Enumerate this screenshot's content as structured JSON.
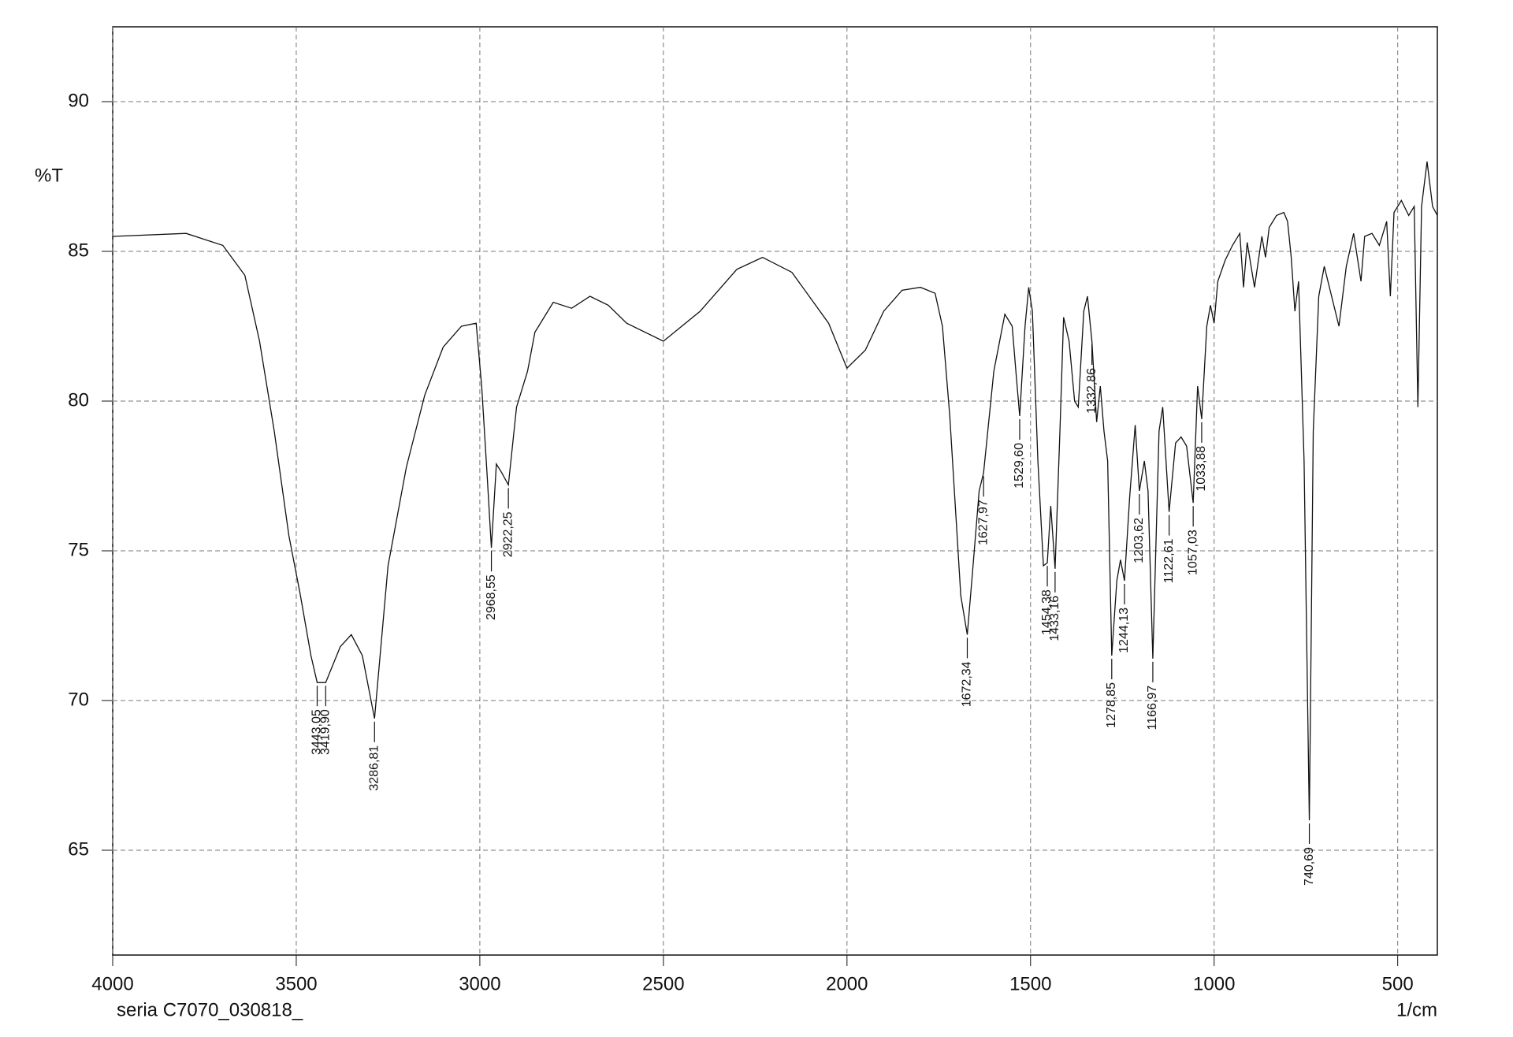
{
  "chart_data": {
    "type": "line",
    "y_label": "%T",
    "x_label": "1/cm",
    "footer": "seria C7070_030818_",
    "color": "#111111",
    "grid": true,
    "xlim": [
      4000,
      392
    ],
    "ylim": [
      61.5,
      92.5
    ],
    "xticks": [
      4000,
      3500,
      3000,
      2500,
      2000,
      1500,
      1000,
      500
    ],
    "yticks": [
      65,
      70,
      75,
      80,
      85,
      90
    ],
    "x": [
      4000,
      3800,
      3700,
      3640,
      3600,
      3560,
      3520,
      3490,
      3460,
      3443.05,
      3419.9,
      3380,
      3350,
      3320,
      3286.81,
      3250,
      3200,
      3150,
      3100,
      3050,
      3010,
      2995,
      2980,
      2968.55,
      2955,
      2940,
      2922.25,
      2900,
      2870,
      2850,
      2800,
      2750,
      2700,
      2650,
      2600,
      2500,
      2400,
      2300,
      2230,
      2150,
      2050,
      2000,
      1950,
      1900,
      1850,
      1800,
      1760,
      1740,
      1720,
      1700,
      1690,
      1672.34,
      1660,
      1640,
      1627.97,
      1600,
      1570,
      1550,
      1540,
      1529.6,
      1515,
      1505,
      1495,
      1480,
      1465,
      1454.38,
      1445,
      1433.16,
      1420,
      1410,
      1395,
      1380,
      1370,
      1355,
      1345,
      1332.86,
      1320,
      1310,
      1300,
      1290,
      1278.85,
      1265,
      1255,
      1244.13,
      1230,
      1215,
      1203.62,
      1190,
      1180,
      1166.97,
      1150,
      1140,
      1122.61,
      1105,
      1090,
      1075,
      1057.03,
      1045,
      1033.88,
      1020,
      1010,
      1000,
      990,
      970,
      950,
      930,
      920,
      910,
      890,
      870,
      860,
      850,
      830,
      810,
      800,
      790,
      780,
      770,
      755,
      740.69,
      730,
      715,
      700,
      680,
      660,
      640,
      620,
      600,
      590,
      570,
      550,
      530,
      520,
      510,
      490,
      470,
      455,
      445,
      435,
      420,
      405,
      392
    ],
    "y": [
      85.5,
      85.6,
      85.2,
      84.2,
      82.0,
      79.0,
      75.5,
      73.6,
      71.5,
      70.6,
      70.6,
      71.8,
      72.2,
      71.5,
      69.4,
      74.5,
      77.8,
      80.2,
      81.8,
      82.5,
      82.6,
      80.5,
      77.5,
      75.1,
      77.9,
      77.6,
      77.2,
      79.8,
      81.0,
      82.3,
      83.3,
      83.1,
      83.5,
      83.2,
      82.6,
      82.0,
      83.0,
      84.4,
      84.8,
      84.3,
      82.6,
      81.1,
      81.7,
      83.0,
      83.7,
      83.8,
      83.6,
      82.5,
      79.5,
      75.5,
      73.5,
      72.2,
      74.0,
      77.0,
      77.6,
      81.0,
      82.9,
      82.5,
      81.0,
      79.5,
      82.5,
      83.8,
      83.0,
      78.0,
      74.5,
      74.6,
      76.5,
      74.4,
      79.0,
      82.8,
      82.0,
      80.0,
      79.8,
      83.0,
      83.5,
      82.0,
      79.3,
      80.5,
      79.0,
      78.0,
      71.5,
      74.0,
      74.7,
      74.0,
      76.8,
      79.2,
      77.0,
      78.0,
      77.0,
      71.4,
      79.0,
      79.8,
      76.3,
      78.6,
      78.8,
      78.5,
      76.6,
      80.5,
      79.4,
      82.5,
      83.2,
      82.6,
      84.0,
      84.7,
      85.2,
      85.6,
      83.8,
      85.3,
      83.8,
      85.5,
      84.8,
      85.8,
      86.2,
      86.3,
      86.0,
      84.8,
      83.0,
      84.0,
      78.0,
      66.0,
      79.0,
      83.5,
      84.5,
      83.5,
      82.5,
      84.5,
      85.6,
      84.0,
      85.5,
      85.6,
      85.2,
      86.0,
      83.5,
      86.3,
      86.7,
      86.2,
      86.5,
      79.8,
      86.5,
      88.0,
      86.5,
      86.2
    ],
    "annotations": [
      {
        "x": 3443.05,
        "y": 70.6,
        "label": "3443,05"
      },
      {
        "x": 3419.9,
        "y": 70.6,
        "label": "3419,90"
      },
      {
        "x": 3286.81,
        "y": 69.4,
        "label": "3286,81"
      },
      {
        "x": 2968.55,
        "y": 75.1,
        "label": "2968,55"
      },
      {
        "x": 2922.25,
        "y": 77.2,
        "label": "2922,25"
      },
      {
        "x": 1672.34,
        "y": 72.2,
        "label": "1672,34"
      },
      {
        "x": 1627.97,
        "y": 77.6,
        "label": "1627,97"
      },
      {
        "x": 1529.6,
        "y": 79.5,
        "label": "1529,60"
      },
      {
        "x": 1454.38,
        "y": 74.6,
        "label": "1454,38"
      },
      {
        "x": 1433.16,
        "y": 74.4,
        "label": "1433,16"
      },
      {
        "x": 1332.86,
        "y": 82.0,
        "label": "1332,86"
      },
      {
        "x": 1278.85,
        "y": 71.5,
        "label": "1278,85"
      },
      {
        "x": 1244.13,
        "y": 74.0,
        "label": "1244,13"
      },
      {
        "x": 1203.62,
        "y": 77.0,
        "label": "1203,62"
      },
      {
        "x": 1166.97,
        "y": 71.4,
        "label": "1166,97"
      },
      {
        "x": 1122.61,
        "y": 76.3,
        "label": "1122,61"
      },
      {
        "x": 1057.03,
        "y": 76.6,
        "label": "1057,03"
      },
      {
        "x": 1033.88,
        "y": 79.4,
        "label": "1033,88"
      },
      {
        "x": 740.69,
        "y": 66.0,
        "label": "740,69"
      }
    ]
  }
}
